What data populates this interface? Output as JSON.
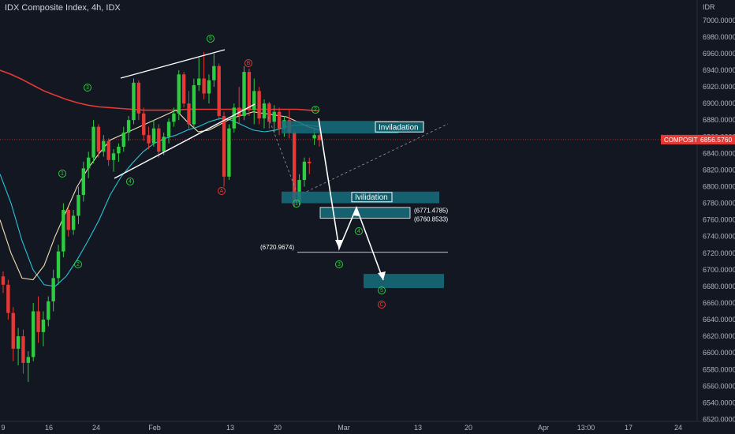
{
  "header": {
    "title": "IDX Composite Index, 4h, IDX"
  },
  "chart_data": {
    "type": "candlestick",
    "title": "IDX Composite Index, 4h, IDX",
    "y_unit": "IDR",
    "ylim": [
      6510,
      7015
    ],
    "y_ticks": [
      "7000.0000",
      "6980.0000",
      "6960.0000",
      "6940.0000",
      "6920.0000",
      "6900.0000",
      "6880.0000",
      "6860.0000",
      "6840.0000",
      "6820.0000",
      "6800.0000",
      "6780.0000",
      "6760.0000",
      "6740.0000",
      "6720.0000",
      "6700.0000",
      "6680.0000",
      "6660.0000",
      "6640.0000",
      "6620.0000",
      "6600.0000",
      "6580.0000",
      "6560.0000",
      "6540.0000",
      "6520.0000"
    ],
    "x_ticks": [
      "9",
      "16",
      "24",
      "Feb",
      "13",
      "20",
      "Mar",
      "13",
      "20",
      "Apr",
      "13:00",
      "17",
      "24"
    ],
    "current_price": {
      "label": "COMPOSITE",
      "value": "6856.5760",
      "color": "#e53935"
    },
    "candle_colors": {
      "up": "#2ecc40",
      "down": "#e53935"
    },
    "candles": [
      [
        6692,
        6698,
        6672,
        6682
      ],
      [
        6682,
        6688,
        6640,
        6648
      ],
      [
        6648,
        6655,
        6590,
        6605
      ],
      [
        6605,
        6630,
        6585,
        6620
      ],
      [
        6620,
        6628,
        6575,
        6588
      ],
      [
        6588,
        6602,
        6565,
        6595
      ],
      [
        6595,
        6660,
        6590,
        6650
      ],
      [
        6650,
        6668,
        6612,
        6625
      ],
      [
        6625,
        6650,
        6608,
        6640
      ],
      [
        6640,
        6668,
        6632,
        6662
      ],
      [
        6662,
        6700,
        6650,
        6690
      ],
      [
        6690,
        6730,
        6682,
        6722
      ],
      [
        6722,
        6780,
        6715,
        6772
      ],
      [
        6772,
        6775,
        6740,
        6748
      ],
      [
        6748,
        6772,
        6742,
        6765
      ],
      [
        6765,
        6800,
        6755,
        6790
      ],
      [
        6790,
        6830,
        6782,
        6822
      ],
      [
        6822,
        6842,
        6810,
        6835
      ],
      [
        6835,
        6880,
        6828,
        6872
      ],
      [
        6872,
        6875,
        6835,
        6842
      ],
      [
        6842,
        6862,
        6836,
        6855
      ],
      [
        6855,
        6858,
        6825,
        6832
      ],
      [
        6832,
        6845,
        6818,
        6840
      ],
      [
        6840,
        6852,
        6830,
        6848
      ],
      [
        6848,
        6872,
        6842,
        6865
      ],
      [
        6865,
        6885,
        6855,
        6880
      ],
      [
        6880,
        6930,
        6875,
        6925
      ],
      [
        6925,
        6928,
        6880,
        6888
      ],
      [
        6888,
        6895,
        6855,
        6862
      ],
      [
        6862,
        6872,
        6845,
        6852
      ],
      [
        6852,
        6880,
        6848,
        6870
      ],
      [
        6870,
        6875,
        6835,
        6842
      ],
      [
        6842,
        6865,
        6838,
        6860
      ],
      [
        6860,
        6882,
        6852,
        6878
      ],
      [
        6878,
        6895,
        6872,
        6888
      ],
      [
        6888,
        6940,
        6880,
        6935
      ],
      [
        6935,
        6938,
        6895,
        6900
      ],
      [
        6900,
        6915,
        6868,
        6875
      ],
      [
        6875,
        6930,
        6870,
        6922
      ],
      [
        6922,
        6955,
        6915,
        6930
      ],
      [
        6930,
        6962,
        6905,
        6912
      ],
      [
        6912,
        6935,
        6900,
        6928
      ],
      [
        6928,
        6960,
        6920,
        6945
      ],
      [
        6945,
        6948,
        6880,
        6885
      ],
      [
        6885,
        6890,
        6800,
        6812
      ],
      [
        6812,
        6875,
        6808,
        6870
      ],
      [
        6870,
        6900,
        6865,
        6895
      ],
      [
        6895,
        6920,
        6875,
        6885
      ],
      [
        6885,
        6945,
        6880,
        6938
      ],
      [
        6938,
        6942,
        6885,
        6892
      ],
      [
        6892,
        6930,
        6875,
        6915
      ],
      [
        6915,
        6920,
        6875,
        6882
      ],
      [
        6882,
        6905,
        6870,
        6900
      ],
      [
        6900,
        6902,
        6870,
        6878
      ],
      [
        6878,
        6898,
        6865,
        6890
      ],
      [
        6890,
        6895,
        6862,
        6870
      ],
      [
        6870,
        6885,
        6860,
        6880
      ],
      [
        6880,
        6892,
        6858,
        6865
      ],
      [
        6865,
        6868,
        6775,
        6782
      ],
      [
        6782,
        6815,
        6778,
        6808
      ],
      [
        6808,
        6835,
        6800,
        6830
      ],
      [
        6830,
        6835,
        6815,
        6828
      ],
      [
        6858,
        6870,
        6850,
        6862
      ],
      [
        6862,
        6878,
        6848,
        6856
      ]
    ],
    "moving_averages": [
      {
        "color": "#e53935",
        "values": [
          6940,
          6935,
          6929,
          6922,
          6915,
          6910,
          6905,
          6901,
          6898,
          6896,
          6895,
          6894,
          6893,
          6892,
          6892,
          6892,
          6892,
          6893,
          6893,
          6893,
          6893,
          6893,
          6893,
          6893,
          6893,
          6893,
          6893,
          6893,
          6892,
          6891
        ]
      },
      {
        "color": "#26c6da",
        "values": [
          6815,
          6780,
          6735,
          6700,
          6682,
          6680,
          6692,
          6712,
          6735,
          6760,
          6790,
          6812,
          6828,
          6842,
          6852,
          6858,
          6862,
          6868,
          6872,
          6878,
          6882,
          6880,
          6874,
          6868,
          6866,
          6868,
          6872,
          6874,
          6874,
          6872
        ]
      },
      {
        "color": "#f5deb3",
        "values": [
          6760,
          6720,
          6690,
          6688,
          6705,
          6740,
          6770,
          6800,
          6822,
          6840,
          6856,
          6862,
          6868,
          6874,
          6880,
          6886,
          6892,
          6878,
          6866,
          6868,
          6875,
          6882,
          6886,
          6890,
          6888,
          6886,
          6884,
          6878,
          6872,
          6868
        ]
      }
    ],
    "projection_path": [
      [
        6856,
        6825,
        6770,
        6720,
        6740,
        6770,
        6738,
        6715,
        6690
      ]
    ],
    "price_levels": [
      {
        "label": "(6771.4785)",
        "value": 6771.4785
      },
      {
        "label": "(6760.8533)",
        "value": 6760.8533
      },
      {
        "label": "(6720.9674)",
        "value": 6720.9674
      }
    ],
    "zones": [
      {
        "label": "Inviladation",
        "top": 6879,
        "bottom": 6864
      },
      {
        "label": "Ivilidation",
        "top": 6794,
        "bottom": 6780
      },
      {
        "label": "",
        "top": 6775,
        "bottom": 6762
      },
      {
        "label": "",
        "top": 6695,
        "bottom": 6678
      }
    ],
    "wave_labels": {
      "green": [
        "3",
        "1",
        "2",
        "4",
        "5",
        "2",
        "1",
        "3",
        "4",
        "5"
      ],
      "red": [
        "A",
        "B",
        "C"
      ]
    }
  }
}
